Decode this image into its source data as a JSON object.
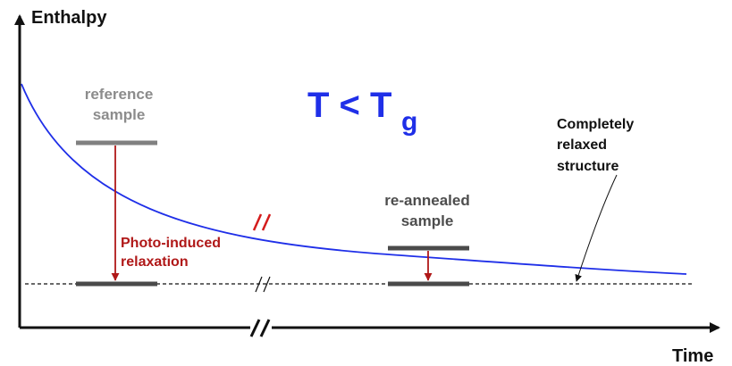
{
  "diagram": {
    "y_axis_label": "Enthalpy",
    "x_axis_label": "Time",
    "title_main": "T < T",
    "title_subscript": "g",
    "reference_label_line1": "reference",
    "reference_label_line2": "sample",
    "reannealed_label_line1": "re-annealed",
    "reannealed_label_line2": "sample",
    "photo_label_line1": "Photo-induced",
    "photo_label_line2": "relaxation",
    "relaxed_label_line1": "Completely",
    "relaxed_label_line2": "relaxed",
    "relaxed_label_line3": "structure",
    "colors": {
      "curve": "#1f2fe8",
      "arrow": "#b01818",
      "reference_text": "#8c8c8c",
      "level_bar": "#808080",
      "level_bar_dark": "#4a4a4a",
      "axis": "#111111"
    }
  }
}
